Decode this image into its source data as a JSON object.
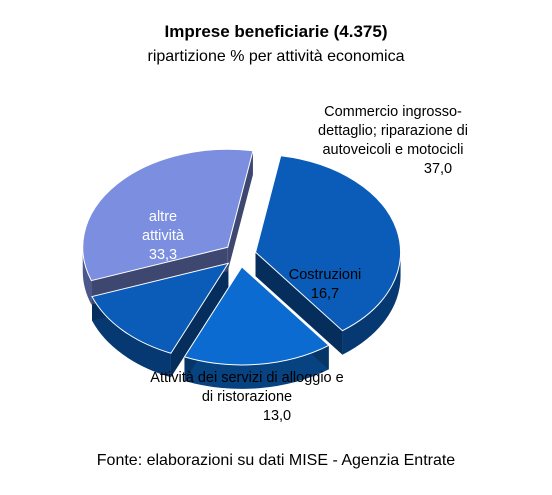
{
  "chart_data": {
    "type": "pie",
    "title": "Imprese beneficiarie (4.375)",
    "subtitle": "ripartizione %  per attività economica",
    "source": "Fonte: elaborazioni su dati MISE - Agenzia Entrate",
    "slices": [
      {
        "lines": [
          "Commercio ingrosso-",
          "dettaglio; riparazione di",
          "autoveicoli e motocicli"
        ],
        "value_label": "37,0",
        "value": 37.0,
        "color": "#0a5cb8"
      },
      {
        "lines": [
          "Costruzioni"
        ],
        "value_label": "16,7",
        "value": 16.7,
        "color": "#0b6bd0"
      },
      {
        "lines": [
          "Attività  dei servizi di alloggio e",
          "di ristorazione"
        ],
        "value_label": "13,0",
        "value": 13.0,
        "color": "#0a5cb8"
      },
      {
        "lines": [
          "altre",
          "attività"
        ],
        "value_label": "33,3",
        "value": 33.3,
        "color": "#7b8ee0"
      }
    ]
  }
}
